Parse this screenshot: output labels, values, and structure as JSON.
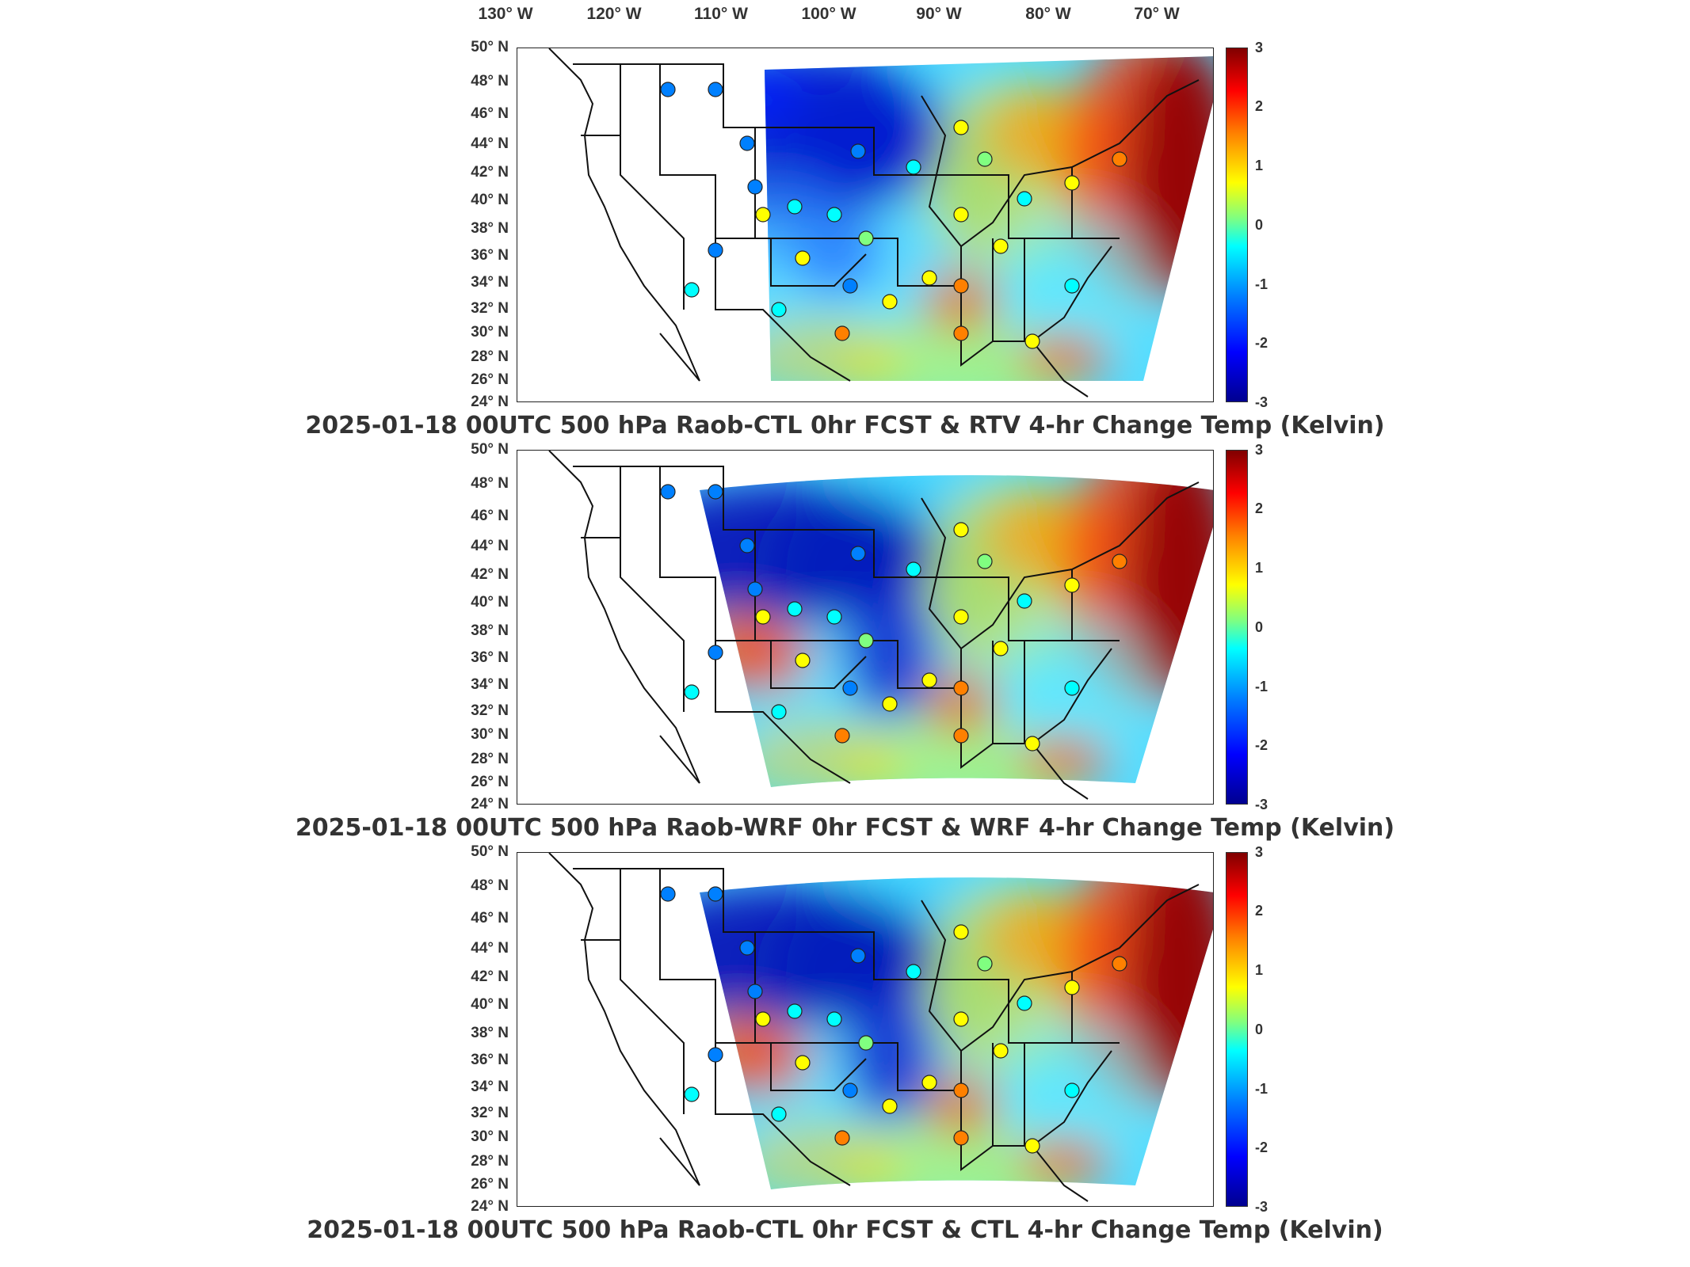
{
  "lon_labels": [
    "130° W",
    "120° W",
    "110° W",
    "100° W",
    "90° W",
    "80° W",
    "70° W"
  ],
  "lat_labels": [
    "50° N",
    "48° N",
    "46° N",
    "44° N",
    "42° N",
    "40° N",
    "38° N",
    "36° N",
    "34° N",
    "32° N",
    "30° N",
    "28° N",
    "26° N",
    "24° N"
  ],
  "colorbar": {
    "ticks": [
      "3",
      "2",
      "1",
      "0",
      "-1",
      "-2",
      "-3"
    ],
    "range": [
      -3,
      3
    ],
    "colormap": "jet",
    "colors": [
      "#00008f",
      "#0000ff",
      "#0080ff",
      "#00ffff",
      "#80ff80",
      "#ffff00",
      "#ff8000",
      "#ff0000",
      "#800000"
    ]
  },
  "panels": [
    {
      "title": "2025-01-18 00UTC 500 hPa Raob-CTL 0hr FCST & RTV 4-hr Change Temp (Kelvin)"
    },
    {
      "title": "2025-01-18 00UTC 500 hPa Raob-WRF 0hr FCST & WRF 4-hr Change Temp (Kelvin)"
    },
    {
      "title": "2025-01-18 00UTC 500 hPa Raob-CTL 0hr FCST & CTL 4-hr Change Temp (Kelvin)"
    }
  ]
}
